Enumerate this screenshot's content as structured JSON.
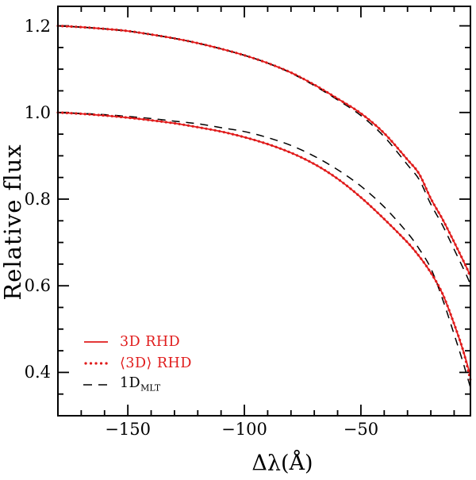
{
  "chart_data": {
    "type": "line",
    "title": "",
    "xlabel": "Δλ(Å)",
    "ylabel": "Relative flux",
    "xlim": [
      -180,
      -3
    ],
    "ylim": [
      0.3,
      1.245
    ],
    "grid": false,
    "frame_color": "#000000",
    "x_major_ticks": [
      -150,
      -100,
      -50
    ],
    "x_tick_labels": [
      "−150",
      "−100",
      "−50"
    ],
    "x_minor_ticks": [
      -170,
      -160,
      -140,
      -130,
      -120,
      -110,
      -90,
      -80,
      -70,
      -60,
      -40,
      -30,
      -20,
      -10
    ],
    "y_major_ticks": [
      0.4,
      0.6,
      0.8,
      1.0,
      1.2
    ],
    "y_tick_labels": [
      "0.4",
      "0.6",
      "0.8",
      "1.0",
      "1.2"
    ],
    "y_minor_ticks": [
      0.35,
      0.45,
      0.5,
      0.55,
      0.65,
      0.7,
      0.75,
      0.85,
      0.9,
      0.95,
      1.05,
      1.1,
      1.15
    ],
    "legend": {
      "position": "lower-left"
    },
    "series": [
      {
        "name": "3D RHD",
        "style": "solid",
        "color": "#e01b1b",
        "curves": {
          "upper": [
            [
              -180,
              1.2
            ],
            [
              -170,
              1.197
            ],
            [
              -160,
              1.193
            ],
            [
              -150,
              1.188
            ],
            [
              -140,
              1.18
            ],
            [
              -130,
              1.171
            ],
            [
              -120,
              1.16
            ],
            [
              -110,
              1.147
            ],
            [
              -100,
              1.132
            ],
            [
              -90,
              1.114
            ],
            [
              -80,
              1.092
            ],
            [
              -70,
              1.064
            ],
            [
              -60,
              1.032
            ],
            [
              -50,
              0.998
            ],
            [
              -40,
              0.952
            ],
            [
              -30,
              0.891
            ],
            [
              -25,
              0.858
            ],
            [
              -20,
              0.801
            ],
            [
              -15,
              0.754
            ],
            [
              -10,
              0.701
            ],
            [
              -5,
              0.646
            ],
            [
              -3,
              0.623
            ]
          ],
          "lower": [
            [
              -180,
              1.0
            ],
            [
              -170,
              0.997
            ],
            [
              -160,
              0.993
            ],
            [
              -150,
              0.988
            ],
            [
              -140,
              0.982
            ],
            [
              -130,
              0.975
            ],
            [
              -120,
              0.966
            ],
            [
              -110,
              0.956
            ],
            [
              -100,
              0.943
            ],
            [
              -90,
              0.927
            ],
            [
              -80,
              0.907
            ],
            [
              -70,
              0.881
            ],
            [
              -60,
              0.847
            ],
            [
              -50,
              0.804
            ],
            [
              -40,
              0.754
            ],
            [
              -30,
              0.7
            ],
            [
              -25,
              0.668
            ],
            [
              -20,
              0.63
            ],
            [
              -15,
              0.582
            ],
            [
              -10,
              0.512
            ],
            [
              -6,
              0.448
            ],
            [
              -3,
              0.393
            ]
          ]
        }
      },
      {
        "name": "⟨3D⟩ RHD",
        "style": "dotted",
        "color": "#e01b1b",
        "curves": {
          "upper": [
            [
              -180,
              1.2
            ],
            [
              -170,
              1.197
            ],
            [
              -160,
              1.193
            ],
            [
              -150,
              1.188
            ],
            [
              -140,
              1.18
            ],
            [
              -130,
              1.171
            ],
            [
              -120,
              1.16
            ],
            [
              -110,
              1.147
            ],
            [
              -100,
              1.132
            ],
            [
              -90,
              1.114
            ],
            [
              -80,
              1.092
            ],
            [
              -70,
              1.064
            ],
            [
              -60,
              1.032
            ],
            [
              -50,
              0.998
            ],
            [
              -40,
              0.952
            ],
            [
              -30,
              0.891
            ],
            [
              -25,
              0.858
            ],
            [
              -20,
              0.801
            ],
            [
              -15,
              0.754
            ],
            [
              -10,
              0.701
            ],
            [
              -5,
              0.646
            ],
            [
              -3,
              0.62
            ]
          ],
          "lower": [
            [
              -180,
              1.0
            ],
            [
              -170,
              0.997
            ],
            [
              -160,
              0.993
            ],
            [
              -150,
              0.988
            ],
            [
              -140,
              0.982
            ],
            [
              -130,
              0.975
            ],
            [
              -120,
              0.966
            ],
            [
              -110,
              0.956
            ],
            [
              -100,
              0.943
            ],
            [
              -90,
              0.927
            ],
            [
              -80,
              0.907
            ],
            [
              -70,
              0.881
            ],
            [
              -60,
              0.847
            ],
            [
              -50,
              0.804
            ],
            [
              -40,
              0.754
            ],
            [
              -30,
              0.7
            ],
            [
              -25,
              0.668
            ],
            [
              -20,
              0.63
            ],
            [
              -15,
              0.582
            ],
            [
              -10,
              0.512
            ],
            [
              -6,
              0.448
            ],
            [
              -3,
              0.382
            ]
          ]
        }
      },
      {
        "name": "1D",
        "name_sub": "MLT",
        "style": "dashed",
        "color": "#000000",
        "curves": {
          "upper": [
            [
              -180,
              1.2
            ],
            [
              -170,
              1.197
            ],
            [
              -160,
              1.193
            ],
            [
              -150,
              1.188
            ],
            [
              -140,
              1.18
            ],
            [
              -130,
              1.171
            ],
            [
              -120,
              1.16
            ],
            [
              -110,
              1.147
            ],
            [
              -100,
              1.132
            ],
            [
              -90,
              1.114
            ],
            [
              -80,
              1.091
            ],
            [
              -70,
              1.062
            ],
            [
              -60,
              1.029
            ],
            [
              -50,
              0.993
            ],
            [
              -40,
              0.944
            ],
            [
              -30,
              0.879
            ],
            [
              -25,
              0.845
            ],
            [
              -20,
              0.788
            ],
            [
              -15,
              0.74
            ],
            [
              -10,
              0.684
            ],
            [
              -5,
              0.628
            ],
            [
              -3,
              0.603
            ]
          ],
          "lower": [
            [
              -180,
              1.0
            ],
            [
              -170,
              0.998
            ],
            [
              -160,
              0.995
            ],
            [
              -150,
              0.991
            ],
            [
              -140,
              0.986
            ],
            [
              -130,
              0.98
            ],
            [
              -120,
              0.974
            ],
            [
              -110,
              0.965
            ],
            [
              -100,
              0.956
            ],
            [
              -90,
              0.942
            ],
            [
              -80,
              0.924
            ],
            [
              -70,
              0.899
            ],
            [
              -60,
              0.868
            ],
            [
              -50,
              0.83
            ],
            [
              -40,
              0.782
            ],
            [
              -30,
              0.722
            ],
            [
              -25,
              0.685
            ],
            [
              -20,
              0.64
            ],
            [
              -15,
              0.57
            ],
            [
              -10,
              0.488
            ],
            [
              -6,
              0.42
            ],
            [
              -3,
              0.365
            ]
          ]
        }
      }
    ]
  }
}
